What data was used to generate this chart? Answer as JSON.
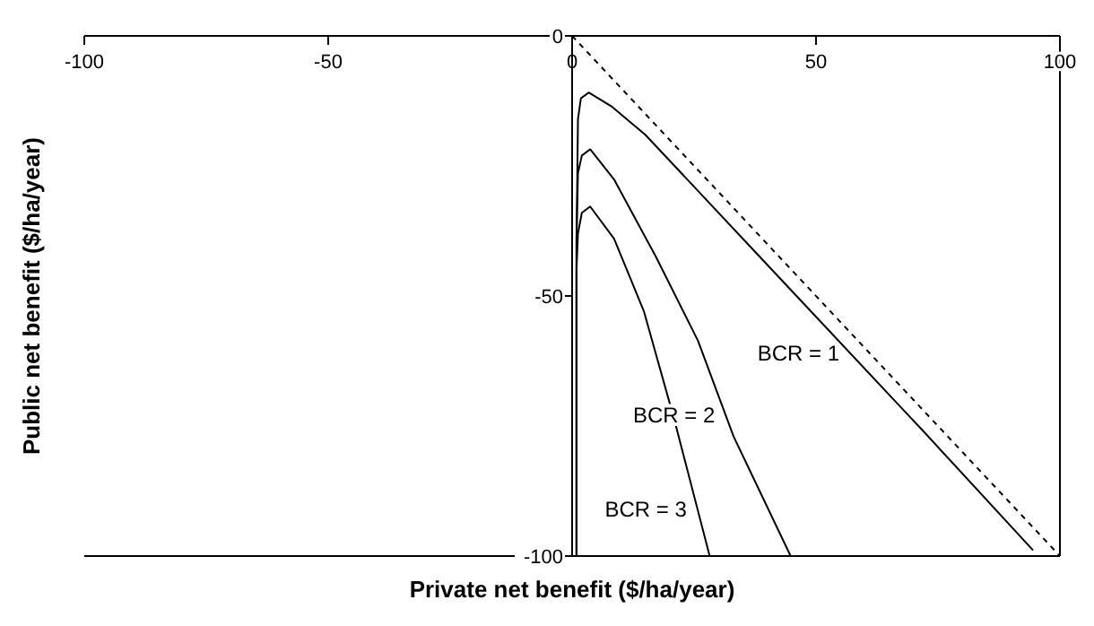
{
  "chart_data": {
    "type": "line",
    "xlabel": "Private net benefit ($/ha/year)",
    "ylabel": "Public net benefit ($/ha/year)",
    "xlim": [
      -100,
      100
    ],
    "ylim": [
      -100,
      0
    ],
    "xticks": [
      -100,
      -50,
      0,
      50,
      100
    ],
    "yticks": [
      0,
      -50,
      -100
    ],
    "grid": false,
    "marker": "none",
    "series": [
      {
        "color": "#000000",
        "x": [
          0.9,
          0.9,
          1.2,
          1.8,
          3.4,
          8,
          15,
          22,
          36,
          51,
          72,
          94.5
        ],
        "values": [
          -100,
          -40,
          -16,
          -12,
          -10.9,
          -13.5,
          -19,
          -26,
          -40,
          -55,
          -76,
          -98.9
        ]
      },
      {
        "color": "#000000",
        "x": [
          0.9,
          0.9,
          1.2,
          2,
          3.7,
          8.6,
          17.2,
          25.8,
          33.1,
          44.8
        ],
        "values": [
          -100,
          -39,
          -26.4,
          -23,
          -21.8,
          -27.6,
          -42.5,
          -58.6,
          -77,
          -100
        ]
      },
      {
        "color": "#000000",
        "x": [
          0.9,
          0.9,
          1.2,
          2,
          3.7,
          8.6,
          14.7,
          20.9,
          28.2
        ],
        "values": [
          -100,
          -45,
          -38,
          -34,
          -32.8,
          -39,
          -52.9,
          -73.6,
          -100
        ]
      },
      {
        "color": "#000000",
        "line_style": "dashed",
        "x": [
          0,
          100
        ],
        "values": [
          0,
          -100
        ]
      }
    ],
    "annotations": [
      {
        "text": "BCR = 1",
        "x": 57,
        "y": -61
      },
      {
        "text": "BCR = 2",
        "x": 31.5,
        "y": -73
      },
      {
        "text": "BCR = 3",
        "x": 25.7,
        "y": -91
      }
    ]
  }
}
